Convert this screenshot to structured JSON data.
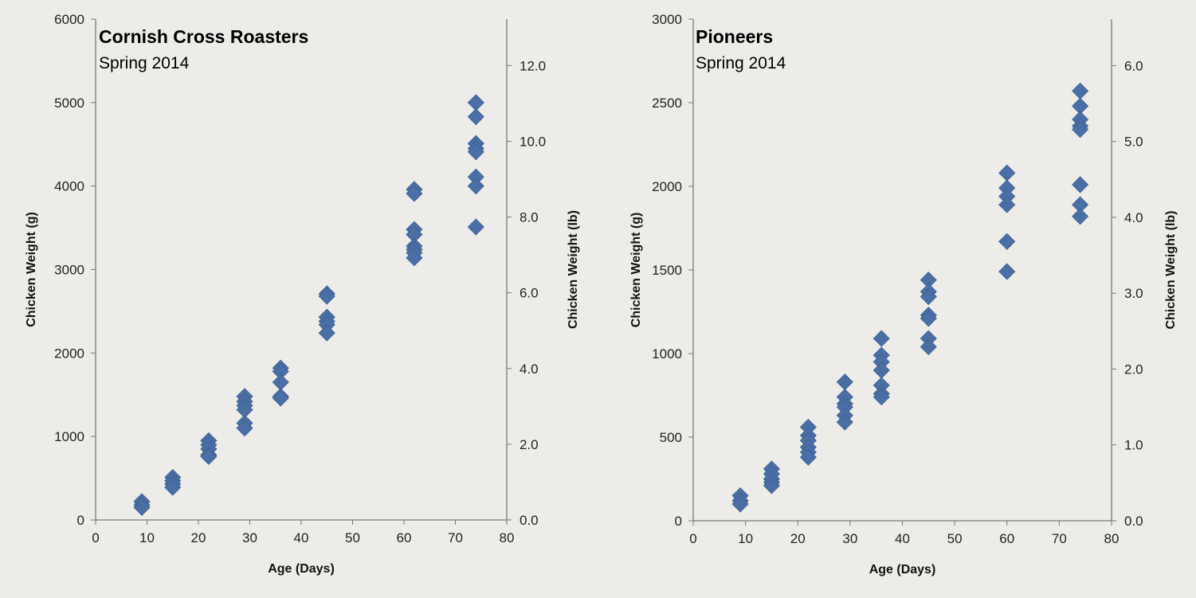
{
  "chart_data": [
    {
      "type": "scatter",
      "title": "Cornish Cross Roasters",
      "subtitle": "Spring 2014",
      "xlabel": "Age (Days)",
      "ylabel": "Chicken Weight (g)",
      "y2label": "Chicken Weight (lb)",
      "xlim": [
        0,
        80
      ],
      "ylim": [
        0,
        6000
      ],
      "xticks": [
        "0",
        "10",
        "20",
        "30",
        "40",
        "50",
        "60",
        "70",
        "80"
      ],
      "yticks": [
        "0",
        "1000",
        "2000",
        "3000",
        "4000",
        "5000",
        "6000"
      ],
      "y2ticks": [
        "0.0",
        "2.0",
        "4.0",
        "6.0",
        "8.0",
        "10.0",
        "12.0"
      ],
      "grams_per_lb": 453.6,
      "marker_color": "#4a6fa5",
      "points": [
        {
          "x": 9,
          "y": [
            220,
            180,
            150
          ]
        },
        {
          "x": 15,
          "y": [
            510,
            470,
            430,
            390
          ]
        },
        {
          "x": 22,
          "y": [
            950,
            900,
            850,
            780,
            760
          ]
        },
        {
          "x": 29,
          "y": [
            1480,
            1420,
            1370,
            1320,
            1160,
            1100
          ]
        },
        {
          "x": 36,
          "y": [
            1820,
            1780,
            1650,
            1480,
            1460
          ]
        },
        {
          "x": 45,
          "y": [
            2710,
            2680,
            2430,
            2380,
            2340,
            2240
          ]
        },
        {
          "x": 62,
          "y": [
            3960,
            3910,
            3480,
            3420,
            3280,
            3240,
            3200,
            3140
          ]
        },
        {
          "x": 74,
          "y": [
            5000,
            4830,
            4510,
            4450,
            4410,
            4110,
            4000,
            3510
          ]
        }
      ]
    },
    {
      "type": "scatter",
      "title": "Pioneers",
      "subtitle": "Spring 2014",
      "xlabel": "Age (Days)",
      "ylabel": "Chicken Weight (g)",
      "y2label": "Chicken Weight (lb)",
      "xlim": [
        0,
        80
      ],
      "ylim": [
        0,
        3000
      ],
      "xticks": [
        "0",
        "10",
        "20",
        "30",
        "40",
        "50",
        "60",
        "70",
        "80"
      ],
      "yticks": [
        "0",
        "500",
        "1000",
        "1500",
        "2000",
        "2500",
        "3000"
      ],
      "y2ticks": [
        "0.0",
        "1.0",
        "2.0",
        "3.0",
        "4.0",
        "5.0",
        "6.0"
      ],
      "grams_per_lb": 453.6,
      "marker_color": "#4a6fa5",
      "points": [
        {
          "x": 9,
          "y": [
            150,
            120,
            100
          ]
        },
        {
          "x": 15,
          "y": [
            310,
            280,
            250,
            230,
            210
          ]
        },
        {
          "x": 22,
          "y": [
            560,
            510,
            480,
            440,
            410,
            380
          ]
        },
        {
          "x": 29,
          "y": [
            830,
            740,
            700,
            680,
            630,
            590
          ]
        },
        {
          "x": 36,
          "y": [
            1090,
            990,
            950,
            900,
            810,
            760,
            740
          ]
        },
        {
          "x": 45,
          "y": [
            1440,
            1370,
            1340,
            1230,
            1210,
            1090,
            1040
          ]
        },
        {
          "x": 60,
          "y": [
            2080,
            1990,
            1940,
            1890,
            1670,
            1490
          ]
        },
        {
          "x": 74,
          "y": [
            2570,
            2480,
            2400,
            2360,
            2340,
            2010,
            1890,
            1820
          ]
        }
      ]
    }
  ]
}
